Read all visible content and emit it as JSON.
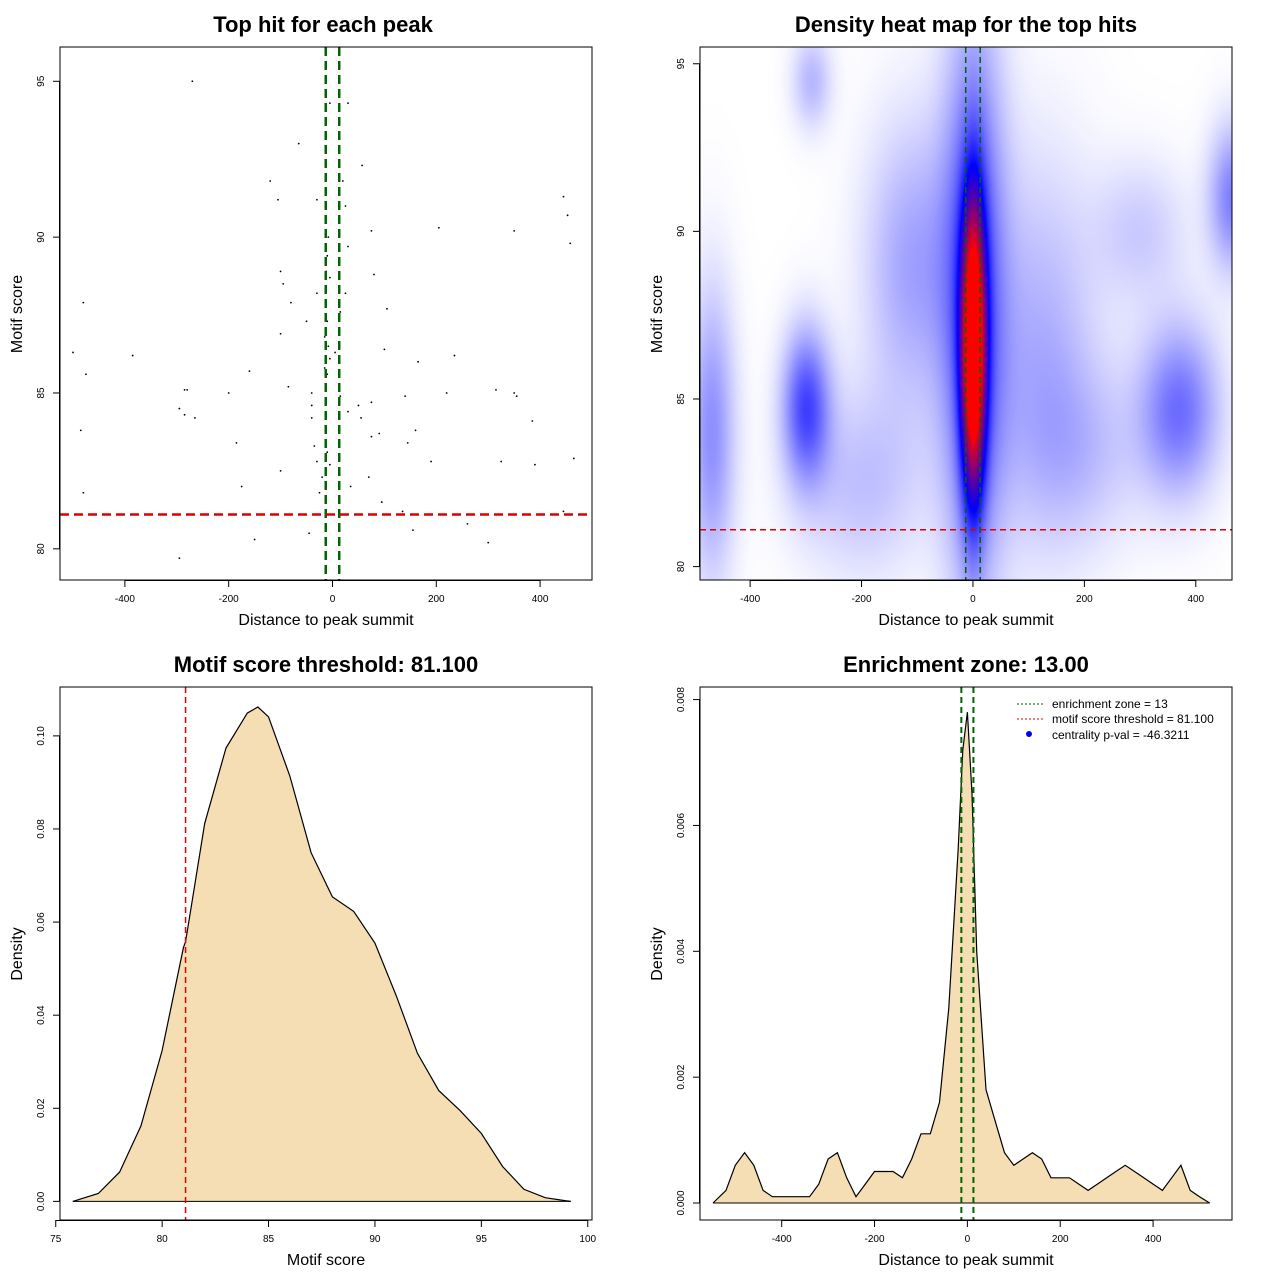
{
  "chart_data": [
    {
      "id": "scatter",
      "type": "scatter",
      "title": "Top hit for each peak",
      "xlabel": "Distance to peak summit",
      "ylabel": "Motif score",
      "xlim": [
        -525,
        500
      ],
      "ylim": [
        79,
        96.1
      ],
      "xticks": [
        -400,
        -200,
        0,
        200,
        400
      ],
      "xtick_labels": [
        "-400",
        "-200",
        "0",
        "200",
        "400"
      ],
      "yticks": [
        80,
        85,
        90,
        95
      ],
      "ytick_labels": [
        "80",
        "85",
        "90",
        "95"
      ],
      "vlines": [
        {
          "x": -13,
          "color": "#006400"
        },
        {
          "x": 13,
          "color": "#006400"
        }
      ],
      "hlines": [
        {
          "y": 81.1,
          "color": "#dd0000"
        }
      ],
      "points": [
        [
          -270,
          95.0
        ],
        [
          -13,
          94.5
        ],
        [
          -5,
          94.3
        ],
        [
          30,
          94.3
        ],
        [
          -65,
          93.0
        ],
        [
          57,
          92.3
        ],
        [
          -120,
          91.8
        ],
        [
          20,
          91.8
        ],
        [
          -105,
          91.2
        ],
        [
          -30,
          91.2
        ],
        [
          25,
          91.0
        ],
        [
          445,
          91.3
        ],
        [
          453,
          90.7
        ],
        [
          -12,
          90.6
        ],
        [
          -8,
          90.0
        ],
        [
          75,
          90.2
        ],
        [
          205,
          90.3
        ],
        [
          350,
          90.2
        ],
        [
          458,
          89.8
        ],
        [
          30,
          89.7
        ],
        [
          -10,
          89.4
        ],
        [
          -100,
          88.9
        ],
        [
          -12,
          88.9
        ],
        [
          -5,
          88.7
        ],
        [
          80,
          88.8
        ],
        [
          -95,
          88.5
        ],
        [
          25,
          88.2
        ],
        [
          -80,
          87.9
        ],
        [
          -480,
          87.9
        ],
        [
          -30,
          88.2
        ],
        [
          -50,
          87.3
        ],
        [
          105,
          87.7
        ],
        [
          15,
          87.6
        ],
        [
          -10,
          87.3
        ],
        [
          -100,
          86.9
        ],
        [
          -15,
          86.8
        ],
        [
          -8,
          86.5
        ],
        [
          5,
          86.3
        ],
        [
          100,
          86.4
        ],
        [
          -500,
          86.3
        ],
        [
          -385,
          86.2
        ],
        [
          -5,
          86.1
        ],
        [
          235,
          86.2
        ],
        [
          165,
          86.0
        ],
        [
          -15,
          85.8
        ],
        [
          -475,
          85.6
        ],
        [
          -10,
          85.6
        ],
        [
          -160,
          85.7
        ],
        [
          -200,
          85.0
        ],
        [
          -285,
          85.1
        ],
        [
          -280,
          85.1
        ],
        [
          -85,
          85.2
        ],
        [
          -40,
          85.0
        ],
        [
          220,
          85.0
        ],
        [
          315,
          85.1
        ],
        [
          350,
          85.0
        ],
        [
          355,
          84.9
        ],
        [
          140,
          84.9
        ],
        [
          -40,
          84.6
        ],
        [
          15,
          84.9
        ],
        [
          50,
          84.6
        ],
        [
          75,
          84.7
        ],
        [
          -295,
          84.5
        ],
        [
          -285,
          84.3
        ],
        [
          -265,
          84.2
        ],
        [
          -40,
          84.2
        ],
        [
          30,
          84.4
        ],
        [
          55,
          84.2
        ],
        [
          385,
          84.1
        ],
        [
          -485,
          83.8
        ],
        [
          -185,
          83.4
        ],
        [
          -35,
          83.3
        ],
        [
          -10,
          83.1
        ],
        [
          75,
          83.6
        ],
        [
          90,
          83.7
        ],
        [
          145,
          83.4
        ],
        [
          160,
          83.8
        ],
        [
          -30,
          82.8
        ],
        [
          -5,
          82.7
        ],
        [
          -100,
          82.5
        ],
        [
          190,
          82.8
        ],
        [
          325,
          82.8
        ],
        [
          390,
          82.7
        ],
        [
          465,
          82.9
        ],
        [
          -175,
          82.0
        ],
        [
          -20,
          82.3
        ],
        [
          70,
          82.3
        ],
        [
          35,
          82.0
        ],
        [
          -480,
          81.8
        ],
        [
          -25,
          81.8
        ],
        [
          95,
          81.5
        ],
        [
          130,
          81.1
        ],
        [
          135,
          81.2
        ],
        [
          445,
          81.2
        ],
        [
          260,
          80.8
        ],
        [
          155,
          80.6
        ],
        [
          -45,
          80.5
        ],
        [
          -150,
          80.3
        ],
        [
          300,
          80.2
        ],
        [
          -295,
          79.7
        ]
      ]
    },
    {
      "id": "heatmap",
      "type": "heatmap",
      "title": "Density heat map for the top hits",
      "xlabel": "Distance to peak summit",
      "ylabel": "Motif score",
      "xlim": [
        -490,
        465
      ],
      "ylim": [
        79.6,
        95.5
      ],
      "xticks": [
        -400,
        -200,
        0,
        200,
        400
      ],
      "xtick_labels": [
        "-400",
        "-200",
        "0",
        "200",
        "400"
      ],
      "yticks": [
        80,
        85,
        90,
        95
      ],
      "ytick_labels": [
        "80",
        "85",
        "90",
        "95"
      ],
      "vlines": [
        {
          "x": -13,
          "color": "#006400"
        },
        {
          "x": 13,
          "color": "#006400"
        }
      ],
      "hlines": [
        {
          "y": 81.1,
          "color": "#dd0000"
        }
      ],
      "blobs": [
        {
          "x": 0,
          "y": 86.5,
          "sx": 15,
          "sy": 3.0,
          "w": 1.0
        },
        {
          "x": 0,
          "y": 88.0,
          "sx": 40,
          "sy": 6.0,
          "w": 0.35
        },
        {
          "x": -300,
          "y": 84.8,
          "sx": 30,
          "sy": 1.6,
          "w": 0.35
        },
        {
          "x": 370,
          "y": 84.7,
          "sx": 50,
          "sy": 1.8,
          "w": 0.28
        },
        {
          "x": -470,
          "y": 84.0,
          "sx": 30,
          "sy": 3.0,
          "w": 0.22
        },
        {
          "x": 465,
          "y": 91.0,
          "sx": 30,
          "sy": 1.5,
          "w": 0.25
        },
        {
          "x": -110,
          "y": 89.0,
          "sx": 60,
          "sy": 3.0,
          "w": 0.18
        },
        {
          "x": 120,
          "y": 86.5,
          "sx": 70,
          "sy": 4.0,
          "w": 0.15
        },
        {
          "x": -290,
          "y": 94.5,
          "sx": 25,
          "sy": 1.0,
          "w": 0.14
        },
        {
          "x": -200,
          "y": 82.5,
          "sx": 80,
          "sy": 2.0,
          "w": 0.12
        },
        {
          "x": 200,
          "y": 83.5,
          "sx": 80,
          "sy": 2.0,
          "w": 0.1
        },
        {
          "x": 300,
          "y": 90.0,
          "sx": 60,
          "sy": 1.5,
          "w": 0.1
        }
      ]
    },
    {
      "id": "density-score",
      "type": "area",
      "title": "Motif score threshold: 81.100",
      "xlabel": "Motif score",
      "ylabel": "Density",
      "xlim": [
        75.2,
        100.2
      ],
      "ylim": [
        -0.004,
        0.1105
      ],
      "xticks": [
        75,
        80,
        85,
        90,
        95,
        100
      ],
      "xtick_labels": [
        "75",
        "80",
        "85",
        "90",
        "95",
        "100"
      ],
      "yticks": [
        0.0,
        0.02,
        0.04,
        0.06,
        0.08,
        0.1
      ],
      "ytick_labels": [
        "0.00",
        "0.02",
        "0.04",
        "0.06",
        "0.08",
        "0.10"
      ],
      "vlines": [
        {
          "x": 81.1,
          "color": "#dd0000"
        }
      ],
      "x": [
        75.8,
        77,
        78,
        79,
        80,
        81,
        81.1,
        82,
        83,
        84,
        84.5,
        85,
        86,
        87,
        88,
        89,
        90,
        91,
        92,
        93,
        94,
        95,
        96,
        97,
        98,
        99,
        99.2
      ],
      "y": [
        0.0,
        0.0017,
        0.0063,
        0.0162,
        0.0324,
        0.0545,
        0.0558,
        0.0812,
        0.0974,
        0.1049,
        0.1062,
        0.1041,
        0.0914,
        0.0749,
        0.0654,
        0.0623,
        0.0555,
        0.0442,
        0.0318,
        0.0238,
        0.0195,
        0.0146,
        0.0075,
        0.0026,
        0.0008,
        0.0001,
        0.0
      ]
    },
    {
      "id": "density-distance",
      "type": "area",
      "title": "Enrichment zone: 13.00",
      "xlabel": "Distance to peak summit",
      "ylabel": "Density",
      "xlim": [
        -576,
        570
      ],
      "ylim": [
        -0.00027,
        0.0082
      ],
      "xticks": [
        -400,
        -200,
        0,
        200,
        400
      ],
      "xtick_labels": [
        "-400",
        "-200",
        "0",
        "200",
        "400"
      ],
      "yticks": [
        0.0,
        0.002,
        0.004,
        0.006,
        0.008
      ],
      "ytick_labels": [
        "0.000",
        "0.002",
        "0.004",
        "0.006",
        "0.008"
      ],
      "vlines": [
        {
          "x": -13,
          "color": "#006400"
        },
        {
          "x": 13,
          "color": "#006400"
        }
      ],
      "x": [
        -548,
        -520,
        -500,
        -480,
        -460,
        -440,
        -420,
        -400,
        -380,
        -360,
        -340,
        -320,
        -300,
        -280,
        -260,
        -240,
        -220,
        -200,
        -180,
        -160,
        -140,
        -120,
        -100,
        -80,
        -60,
        -40,
        -20,
        -10,
        0,
        10,
        20,
        40,
        60,
        80,
        100,
        120,
        140,
        160,
        180,
        200,
        220,
        240,
        260,
        280,
        300,
        320,
        340,
        360,
        380,
        400,
        420,
        440,
        460,
        480,
        500,
        522
      ],
      "y": [
        0.0,
        0.0002,
        0.0006,
        0.0008,
        0.0006,
        0.0002,
        0.0001,
        0.0001,
        0.0001,
        0.0001,
        0.0001,
        0.0003,
        0.0007,
        0.0008,
        0.0004,
        0.0001,
        0.0003,
        0.0005,
        0.0005,
        0.0005,
        0.0004,
        0.0007,
        0.0011,
        0.0011,
        0.0016,
        0.0031,
        0.0056,
        0.0072,
        0.0078,
        0.0065,
        0.004,
        0.0018,
        0.0013,
        0.0008,
        0.0006,
        0.0007,
        0.0008,
        0.0007,
        0.0004,
        0.0004,
        0.0004,
        0.0003,
        0.0002,
        0.0003,
        0.0004,
        0.0005,
        0.0006,
        0.0005,
        0.0004,
        0.0003,
        0.0002,
        0.0004,
        0.0006,
        0.0002,
        0.0001,
        0.0
      ],
      "legend": [
        {
          "label": "enrichment zone = 13",
          "style": "dotted-line",
          "color": "#006400"
        },
        {
          "label": "motif score threshold = 81.100",
          "style": "dotted-line",
          "color": "#dd0000"
        },
        {
          "label": "centrality p-val = -46.3211",
          "style": "dot",
          "color": "#0000ff"
        }
      ]
    }
  ],
  "colors": {
    "axis": "#000000",
    "fill": "#f5deb3",
    "green_line": "#006400",
    "red_line": "#dd0000",
    "heat_low": "#ffffff",
    "heat_mid": "#0000ff",
    "heat_high": "#ff0000"
  }
}
